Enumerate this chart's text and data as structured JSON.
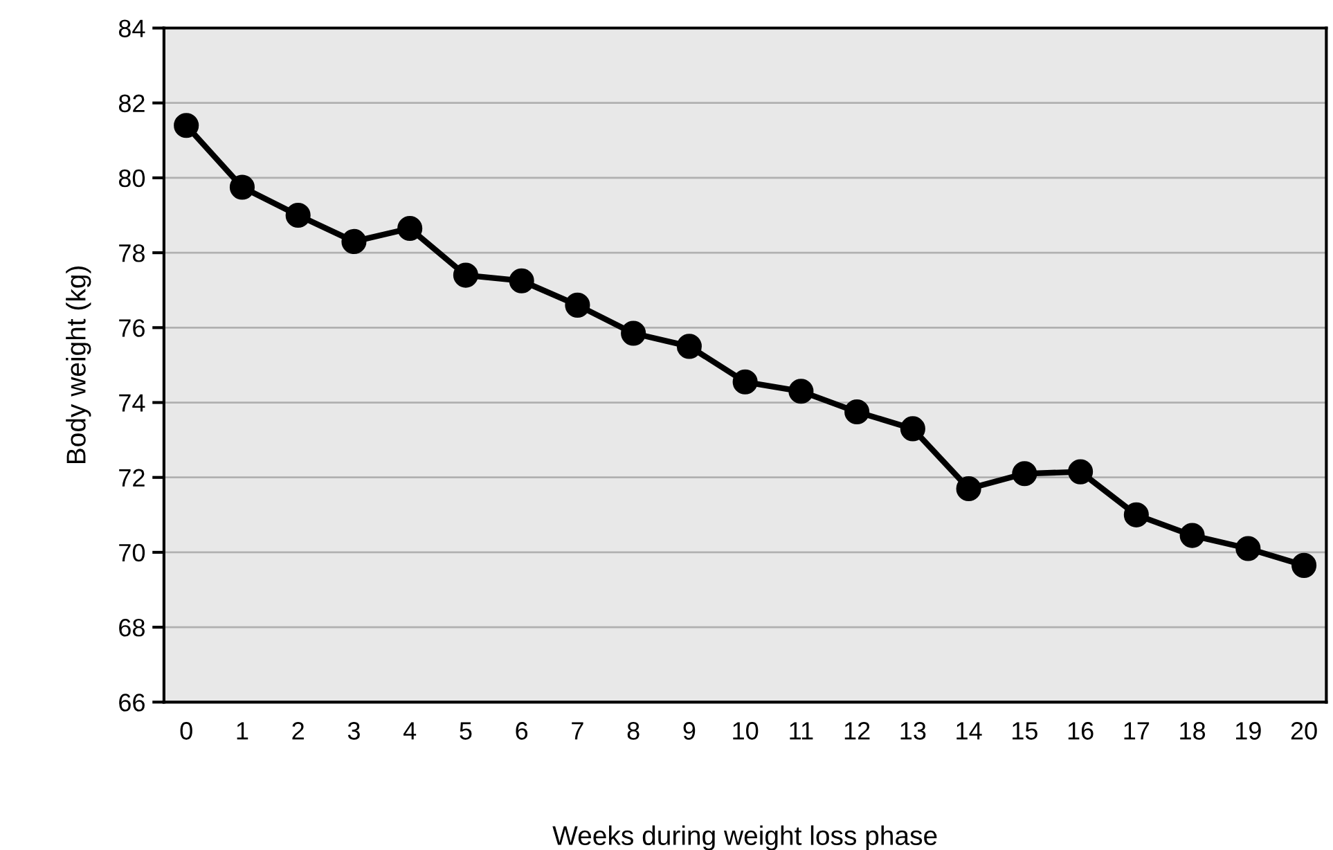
{
  "chart_data": {
    "type": "line",
    "xlabel": "Weeks during weight loss phase",
    "ylabel": "Body weight (kg)",
    "categories": [
      "0",
      "1",
      "2",
      "3",
      "4",
      "5",
      "6",
      "7",
      "8",
      "9",
      "10",
      "11",
      "12",
      "13",
      "14",
      "15",
      "16",
      "17",
      "18",
      "19",
      "20"
    ],
    "series": [
      {
        "color": "#000000",
        "values": [
          81.4,
          79.75,
          79.0,
          78.3,
          78.65,
          77.4,
          77.25,
          76.6,
          75.85,
          75.5,
          74.55,
          74.3,
          73.75,
          73.3,
          71.7,
          72.1,
          72.15,
          71.0,
          70.45,
          70.1,
          69.65
        ]
      }
    ],
    "ylim": [
      66,
      84
    ],
    "yticks": [
      66,
      68,
      70,
      72,
      74,
      76,
      78,
      80,
      82,
      84
    ],
    "grid": "y",
    "marker": "circle",
    "line_style": "solid"
  }
}
